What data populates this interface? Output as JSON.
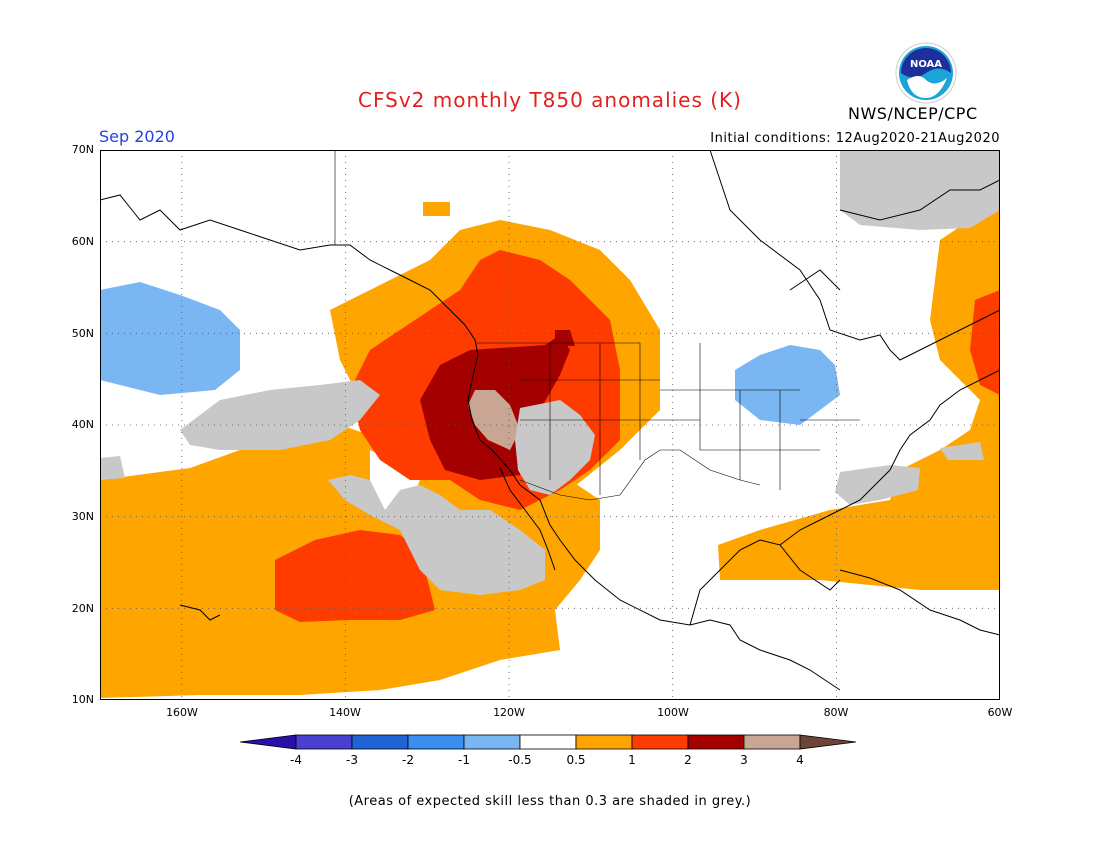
{
  "title": "CFSv2 monthly T850 anomalies (K)",
  "month": "Sep 2020",
  "initial_conditions": "Initial conditions: 12Aug2020-21Aug2020",
  "agency": "NWS/NCEP/CPC",
  "logo_text": "NOAA",
  "latitude_labels": [
    "70N",
    "60N",
    "50N",
    "40N",
    "30N",
    "20N",
    "10N"
  ],
  "longitude_labels": [
    "160W",
    "140W",
    "120W",
    "100W",
    "80W",
    "60W"
  ],
  "colorbar": {
    "labels": [
      "-4",
      "-3",
      "-2",
      "-1",
      "-0.5",
      "0.5",
      "1",
      "2",
      "3",
      "4"
    ],
    "colors": [
      "#2a0fa8",
      "#4a3fcf",
      "#1f63d6",
      "#3a8ef0",
      "#79b6f2",
      "#ffffff",
      "#ffa500",
      "#ff3c00",
      "#a50000",
      "#c9a593",
      "#6b4535"
    ]
  },
  "skill_color": "#c8c8c8",
  "note": "(Areas of expected skill less than 0.3 are shaded in grey.)"
}
